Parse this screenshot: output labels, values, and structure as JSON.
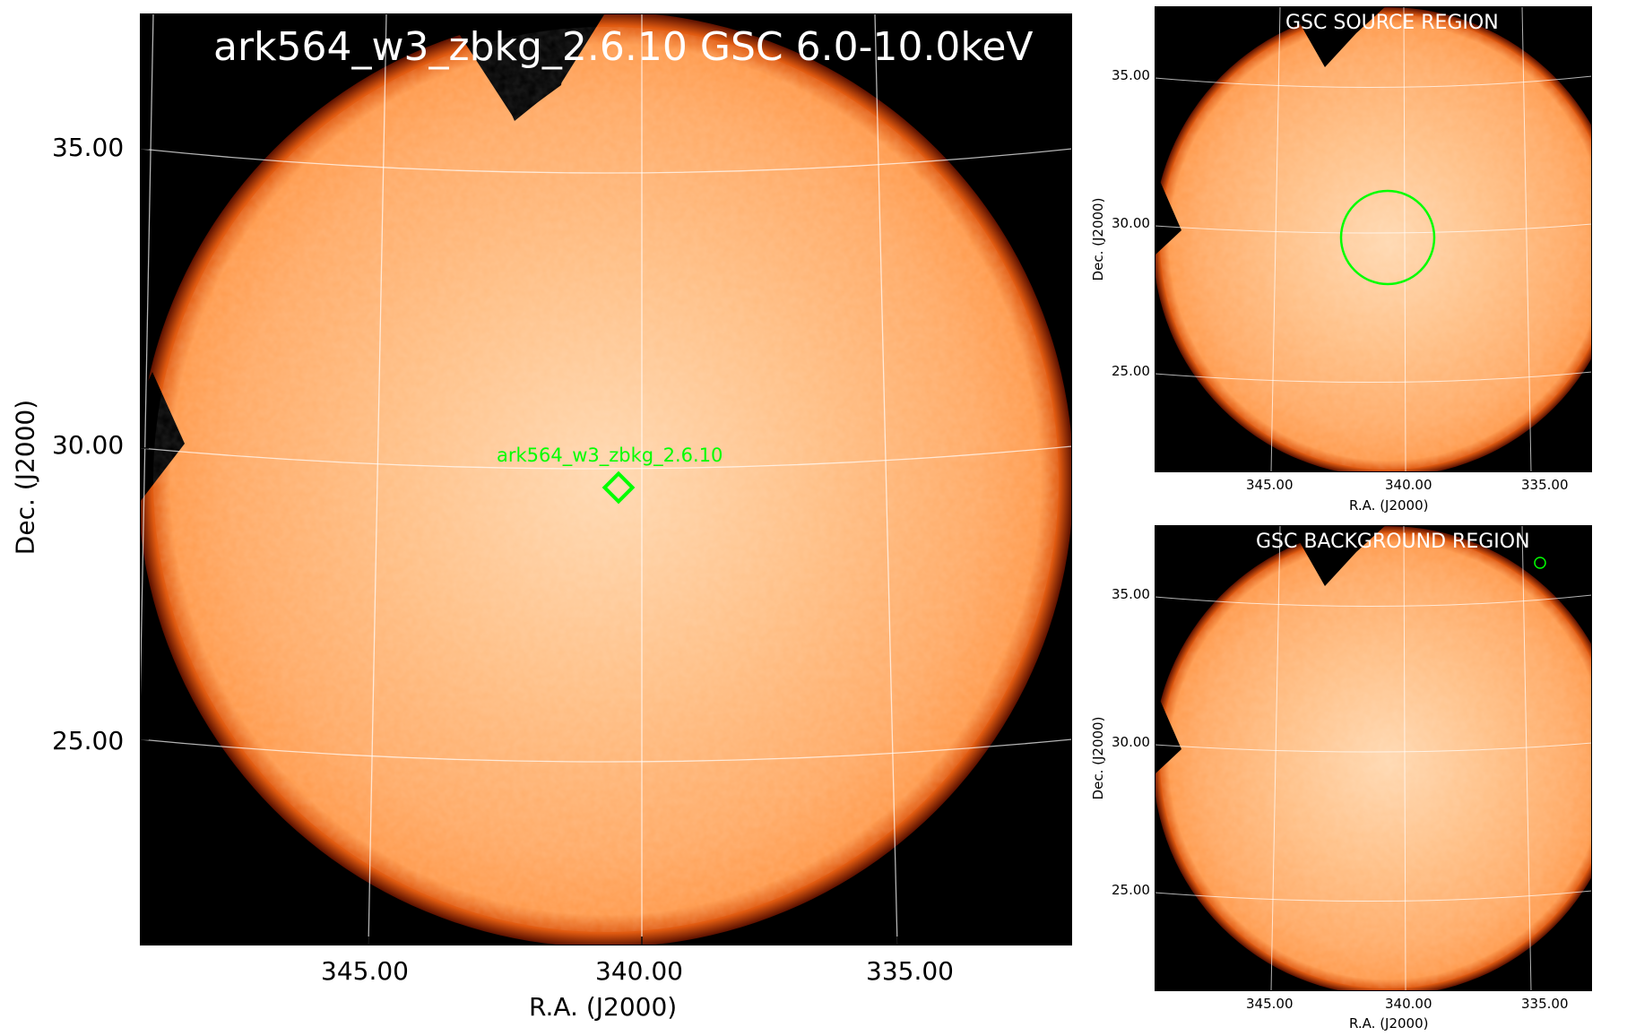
{
  "main": {
    "title": "ark564_w3_zbkg_2.6.10 GSC 6.0-10.0keV",
    "source_label": "ark564_w3_zbkg_2.6.10",
    "xlabel": "R.A. (J2000)",
    "ylabel": "Dec. (J2000)",
    "x_ticks": [
      "345.00",
      "340.00",
      "335.00"
    ],
    "y_ticks": [
      "35.00",
      "30.00",
      "25.00"
    ]
  },
  "source_region": {
    "title": "GSC SOURCE REGION",
    "xlabel": "R.A. (J2000)",
    "ylabel": "Dec. (J2000)",
    "x_ticks": [
      "345.00",
      "340.00",
      "335.00"
    ],
    "y_ticks": [
      "35.00",
      "30.00",
      "25.00"
    ]
  },
  "background_region": {
    "title": "GSC BACKGROUND REGION",
    "xlabel": "R.A. (J2000)",
    "ylabel": "Dec. (J2000)",
    "x_ticks": [
      "345.00",
      "340.00",
      "335.00"
    ],
    "y_ticks": [
      "35.00",
      "30.00",
      "25.00"
    ]
  },
  "colors": {
    "map_fill": "#ffa75c",
    "map_center": "#ffd3a8",
    "map_edge": "#c23a00",
    "background": "#000000",
    "region_marker": "#00ff00",
    "grid": "#ffffff"
  }
}
